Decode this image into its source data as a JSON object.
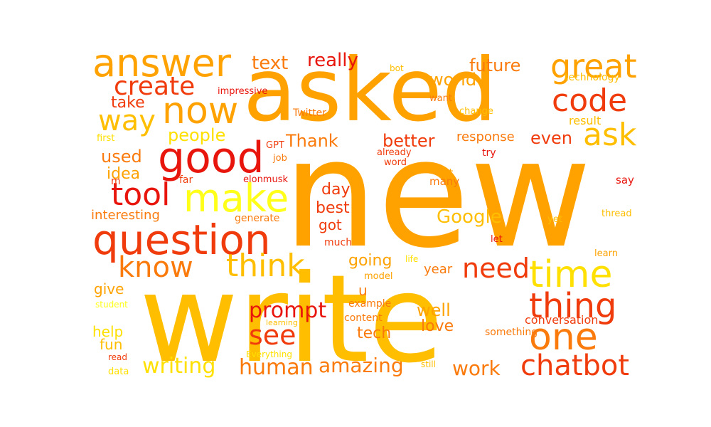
{
  "palette": {
    "red": "#e8150c",
    "red_orange": "#f03c0c",
    "orange": "#fa7a0c",
    "dark_gold": "#ffa200",
    "gold": "#ffbe00",
    "yellow": "#ffe000",
    "bright_yellow": "#ffff1a"
  },
  "words": {
    "new": "new",
    "write": "write",
    "asked": "asked",
    "answer": "answer",
    "question": "question",
    "now": "now",
    "good": "good",
    "make": "make",
    "tool": "tool",
    "think": "think",
    "know": "know",
    "time": "time",
    "one": "one",
    "thing": "thing",
    "great": "great",
    "code": "code",
    "ask": "ask",
    "chatbot": "chatbot",
    "create": "create",
    "way": "way",
    "need": "need",
    "prompt": "prompt",
    "see": "see",
    "human": "human",
    "writing": "writing",
    "amazing": "amazing",
    "work": "work",
    "really": "really",
    "world": "world",
    "future": "future",
    "text": "text",
    "people": "people",
    "google": "Google",
    "thank": "Thank",
    "better": "better",
    "even": "even",
    "response": "response",
    "take": "take",
    "used": "used",
    "idea": "idea",
    "interesting": "interesting",
    "day": "day",
    "best": "best",
    "got": "got",
    "going": "going",
    "year": "year",
    "well": "well",
    "love": "love",
    "tech": "tech",
    "help": "help",
    "fun": "fun",
    "give": "give",
    "u": "u",
    "conversation": "conversation",
    "technology": "technology",
    "result": "result",
    "impressive": "impressive",
    "twitter": "Twitter",
    "bot": "bot",
    "want": "want",
    "change": "change",
    "first": "first",
    "gpt": "GPT",
    "job": "job",
    "already": "already",
    "word": "word",
    "try": "try",
    "far": "far",
    "elonmusk": "elonmusk",
    "lot": "lot",
    "many": "many",
    "say": "say",
    "m": "m",
    "generate": "generate",
    "yet": "yet",
    "thread": "thread",
    "much": "much",
    "let": "let",
    "life": "life",
    "learn": "learn",
    "model": "model",
    "student": "student",
    "example": "example",
    "content": "content",
    "learning": "learning",
    "something": "something",
    "read": "read",
    "everything": "Everything",
    "still": "still",
    "data": "data"
  }
}
